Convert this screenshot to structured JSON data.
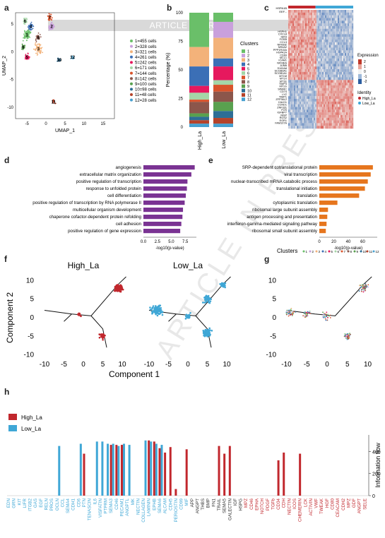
{
  "banner": "ARTICLE IN PRESS",
  "panel_labels": {
    "a": "a",
    "b": "b",
    "c": "c",
    "d": "d",
    "e": "e",
    "f": "f",
    "g": "g",
    "h": "h"
  },
  "colors": {
    "high": "#c1272d",
    "low": "#3fa7d6",
    "purple": "#7a3393",
    "orange": "#e6761e",
    "clusters": [
      "#6abf69",
      "#c9a0dc",
      "#f3b27a",
      "#3b6fb6",
      "#e6195e",
      "#a5d6a7",
      "#d9532b",
      "#8c564b",
      "#59a14f",
      "#2d6e96",
      "#b5432a",
      "#46a0d0"
    ]
  },
  "chart_data": [
    {
      "id": "a",
      "type": "scatter",
      "xlabel": "UMAP_1",
      "ylabel": "UMAP_2",
      "xticks": [
        "-5",
        "0",
        "5",
        "10",
        "15"
      ],
      "yticks": [
        "-10",
        "-5",
        "0",
        "5"
      ],
      "legend": [
        "1=455 cells",
        "2=328 cells",
        "3=321 cells",
        "4=261 cells",
        "5=242 cells",
        "6=171 cells",
        "7=144 cells",
        "8=142 cells",
        "9=100 cells",
        "10=98 cells",
        "11=48 cells",
        "12=28 cells"
      ],
      "cluster_labels": [
        "1",
        "2",
        "3",
        "4",
        "5",
        "6",
        "7",
        "8",
        "9",
        "10",
        "11",
        "12"
      ]
    },
    {
      "id": "b",
      "type": "bar",
      "categories": [
        "High_La",
        "Low_La"
      ],
      "ylabel": "Percentage (%)",
      "yticks": [
        "0",
        "25",
        "50",
        "75",
        "100"
      ],
      "legend_title": "Clusters",
      "series_names": [
        "1",
        "2",
        "3",
        "4",
        "5",
        "6",
        "7",
        "8",
        "9",
        "10",
        "11",
        "12"
      ],
      "values": {
        "High_La": [
          30,
          0,
          17,
          17,
          6,
          6,
          2,
          10,
          3,
          3,
          3,
          3
        ],
        "Low_La": [
          8,
          14,
          18,
          7,
          12,
          4,
          6,
          9,
          8,
          6,
          5,
          3
        ]
      }
    },
    {
      "id": "c",
      "type": "heatmap",
      "genes_top": [
        "HSPA1B",
        "EEF..."
      ],
      "genes": [
        "HSPH1",
        "CXCL8",
        "IER3",
        "FOSB",
        "CCL3",
        "NFKBIZ",
        "NR4A2",
        "PPP1R15A",
        "HSPA1A",
        "CD69",
        "MCL1",
        "ICAM1",
        "NFKBIA",
        "JUNB",
        "S100A8",
        "SCGB3A1",
        "SCGB1A1",
        "MT1M",
        "MT1X",
        "MT1E",
        "TIMP3",
        "MT1G",
        "SPARC",
        "CD74",
        "LYZ",
        "TIMP1",
        "ZFP36L2",
        "CALD1",
        "CCND1",
        "ZNF331",
        "FOS",
        "IGFBP7",
        "MGP",
        "RGS2",
        "EGR1",
        "FAM107A"
      ],
      "legend_title": "Expression",
      "legend_ticks": [
        "2",
        "1",
        "0",
        "-1",
        "-2"
      ],
      "identity_title": "Identity",
      "identity_items": [
        "High_La",
        "Low_La"
      ]
    },
    {
      "id": "d",
      "type": "bar",
      "orientation": "horizontal",
      "categories": [
        "angiogenesis",
        "extracellular matrix organization",
        "positive regulation of transcription",
        "response to unfolded protein",
        "cell differentiation",
        "positive regulation of transcription by RNA polymerase II",
        "multicellular organism development",
        "chaperone cofactor-dependent protein refolding",
        "cell adhesion",
        "positive regulation of gene expression"
      ],
      "values": [
        9.2,
        8.6,
        7.9,
        7.8,
        7.6,
        7.4,
        7.1,
        7.0,
        6.8,
        6.6
      ],
      "xticks": [
        "0.0",
        "2.5",
        "5.0",
        "7.5"
      ],
      "xlim": [
        0,
        9.5
      ],
      "xlabel": "-log10(p-value)"
    },
    {
      "id": "e",
      "type": "bar",
      "orientation": "horizontal",
      "categories": [
        "SRP-dependent cotranslational protein",
        "viral transcription",
        "nuclear-transcribed mRNA catabolic process",
        "translational initiation",
        "translation",
        "cytoplasmic translation",
        "ribosomal large subunit assembly",
        "antigen processing and presentation",
        "interferon-gamma-mediated signaling pathway",
        "ribosomal small subunit assembly"
      ],
      "values": [
        74,
        71,
        67,
        63,
        55,
        25,
        12,
        11,
        10,
        9
      ],
      "xticks": [
        "0",
        "20",
        "40",
        "60"
      ],
      "xlim": [
        0,
        80
      ],
      "xlabel": "-log10(p-value)"
    },
    {
      "id": "f",
      "type": "scatter",
      "facets": [
        "High_La",
        "Low_La"
      ],
      "xlabel": "Component 1",
      "ylabel": "Component 2",
      "xticks": [
        "-10",
        "-5",
        "0",
        "5",
        "10"
      ],
      "yticks": [
        "10",
        "5",
        "0",
        "-5",
        "-10"
      ]
    },
    {
      "id": "g",
      "type": "scatter",
      "legend_title": "Clusters",
      "legend": [
        "1",
        "2",
        "3",
        "4",
        "5",
        "6",
        "7",
        "8",
        "9",
        "10",
        "11",
        "12"
      ],
      "xticks": [
        "-10",
        "-5",
        "0",
        "5",
        "10"
      ],
      "yticks": [
        "10",
        "5",
        "0",
        "-5",
        "-10"
      ]
    },
    {
      "id": "h",
      "type": "bar",
      "series": [
        {
          "name": "High_La"
        },
        {
          "name": "Low_La"
        }
      ],
      "ylabel": "Information flow",
      "yticks": [
        "0",
        "200",
        "400"
      ],
      "ylim": [
        0,
        550
      ],
      "low_labels": [
        "EDN",
        "GRN",
        "KIT",
        "LIFR",
        "ITGB2",
        "GAS",
        "EGF",
        "RELN",
        "PROS",
        "OCLN",
        "CCL",
        "SEMA4",
        "CDH1",
        "CD6",
        "PTN",
        "TENASCIN",
        "IL6",
        "VISFATIN",
        "PTPRM",
        "SEMA3",
        "CD46",
        "PECAM1",
        "ANGPTL",
        "MK",
        "NECTIN",
        "COLLAGEN",
        "LAMININ",
        "EPHB",
        "SEMA6",
        "ALCAM",
        "CDH5",
        "PERIOSTIN",
        "CD99",
        "MIF",
        "APP",
        "ANGPT",
        "THBS",
        "BMP",
        "FN1",
        "TRAIL",
        "SEMA5",
        "GALECTIN",
        "IGF",
        "HSPG",
        "MPZ",
        "CD46",
        "EPHA",
        "NOTCH",
        "PDGF",
        "TGFb",
        "CD34",
        "CDH",
        "NECTIN",
        "ICOS",
        "CHEMERIN",
        "LCK",
        "ACTIVIN",
        "VWF",
        "TWEAK",
        "HGF",
        "CD80",
        "CEACAM",
        "CDH2",
        "MPZ",
        "GDF",
        "ANGPT",
        "SELE"
      ],
      "low_values": [
        0,
        0,
        0,
        0,
        0,
        0,
        0,
        0,
        0,
        450,
        0,
        0,
        0,
        470,
        0,
        0,
        490,
        490,
        470,
        470,
        450,
        470,
        460,
        0,
        0,
        500,
        490,
        470,
        460,
        0,
        0,
        0,
        0,
        0,
        0,
        0,
        0,
        0,
        0,
        0,
        0,
        0,
        0,
        0,
        0,
        0,
        0,
        0,
        0,
        0,
        0,
        0,
        0,
        0,
        0,
        0,
        0,
        0,
        0,
        0,
        0,
        0,
        0,
        0,
        0,
        0,
        0
      ],
      "high_values": [
        0,
        0,
        0,
        0,
        0,
        0,
        0,
        0,
        0,
        0,
        0,
        0,
        0,
        0,
        380,
        0,
        0,
        0,
        0,
        460,
        460,
        460,
        0,
        0,
        0,
        0,
        500,
        490,
        430,
        390,
        440,
        60,
        0,
        420,
        0,
        0,
        0,
        0,
        0,
        450,
        380,
        450,
        0,
        0,
        0,
        0,
        0,
        0,
        0,
        0,
        320,
        390,
        0,
        0,
        380,
        0,
        0,
        0,
        0,
        0,
        0,
        0,
        0,
        0,
        0,
        0,
        0
      ]
    }
  ]
}
